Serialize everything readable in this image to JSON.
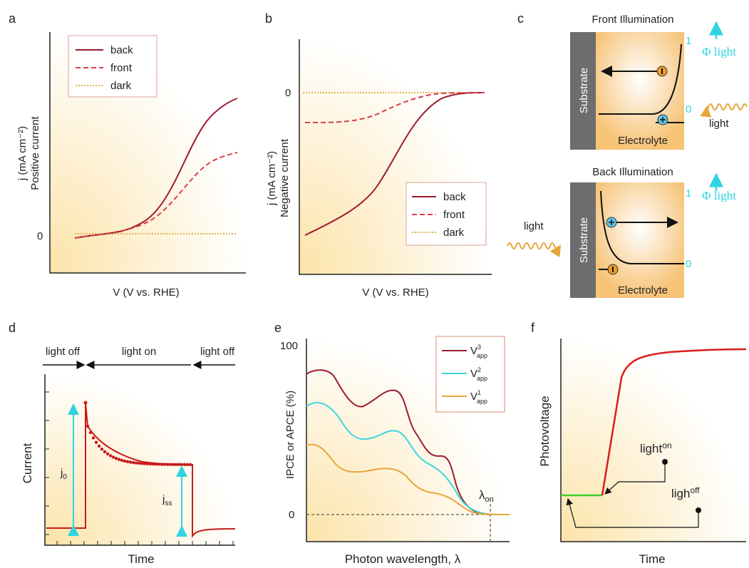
{
  "a": {
    "label": "a",
    "y_label": "j (mA cm⁻²)",
    "y_label_2": "Positive current",
    "x_label": "V (V vs. RHE)",
    "zero": "0",
    "legend": [
      "back",
      "front",
      "dark"
    ]
  },
  "b": {
    "label": "b",
    "y_label": "j (mA cm⁻²)",
    "y_label_2": "Negative current",
    "x_label": "V (V vs. RHE)",
    "zero": "0",
    "legend": [
      "back",
      "front",
      "dark"
    ]
  },
  "c": {
    "label": "c",
    "front": {
      "title": "Front Illumination",
      "substrate": "Substrate",
      "electrolyte": "Electrolyte",
      "one": "1",
      "zero": "0",
      "phi": "Φ light",
      "light": "light"
    },
    "back": {
      "title": "Back Illumination",
      "substrate": "Substrate",
      "electrolyte": "Electrolyte",
      "one": "1",
      "zero": "0",
      "phi": "Φ light",
      "light": "light"
    }
  },
  "d": {
    "label": "d",
    "phases": [
      "light off",
      "light on",
      "light off"
    ],
    "y_label": "Current",
    "x_label": "Time",
    "j0": {
      "main": "j",
      "sub": "0"
    },
    "jss": {
      "main": "j",
      "sub": "ss"
    }
  },
  "e": {
    "label": "e",
    "y_label": "IPCE or APCE (%)",
    "x_label": "Photon wavelength, λ",
    "tick_top": "100",
    "tick_zero": "0",
    "legend": [
      {
        "main": "V",
        "sup": "3",
        "sub": "app"
      },
      {
        "main": "V",
        "sup": "2",
        "sub": "app"
      },
      {
        "main": "V",
        "sup": "1",
        "sub": "app"
      }
    ],
    "lambda_on": {
      "main": "λ",
      "sub": "on"
    }
  },
  "f": {
    "label": "f",
    "y_label": "Photovoltage",
    "x_label": "Time",
    "light_on": {
      "main": "light",
      "sup": "on"
    },
    "light_off": {
      "main": "ligh",
      "sup": "off"
    }
  }
}
